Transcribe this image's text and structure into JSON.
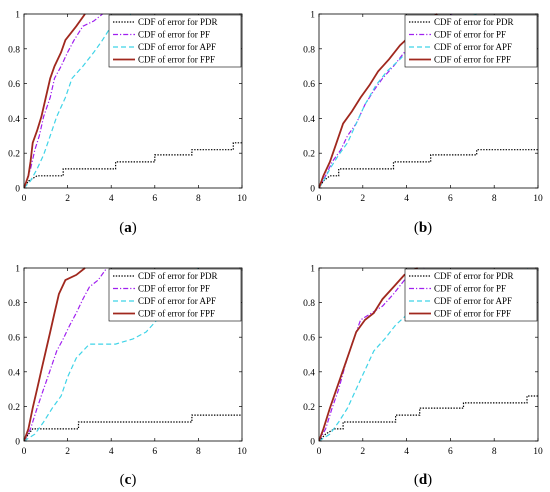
{
  "figure": {
    "styles": {
      "PDR": {
        "color": "#000000",
        "dash": "1.4,1.4",
        "width": 1.2
      },
      "PF": {
        "color": "#a020f0",
        "dash": "5,2,1.2,2",
        "width": 1.2
      },
      "APF": {
        "color": "#3fd4e8",
        "dash": "5,3",
        "width": 1.2
      },
      "FPF": {
        "color": "#a0281e",
        "dash": "",
        "width": 1.8
      }
    }
  },
  "chart_data": [
    {
      "type": "line",
      "label": "(a)",
      "xlim": [
        0,
        10
      ],
      "ylim": [
        0,
        1
      ],
      "xticks": [
        0,
        2,
        4,
        6,
        8,
        10
      ],
      "yticks": [
        0,
        0.2,
        0.4,
        0.6,
        0.8,
        1
      ],
      "legend_placement": "top-right",
      "series": [
        {
          "name": "CDF of error for PDR",
          "key": "PDR",
          "points": [
            [
              0,
              0
            ],
            [
              0.2,
              0.04
            ],
            [
              0.6,
              0.07
            ],
            [
              1.8,
              0.07
            ],
            [
              1.8,
              0.11
            ],
            [
              4.2,
              0.11
            ],
            [
              4.2,
              0.15
            ],
            [
              6.0,
              0.15
            ],
            [
              6.0,
              0.19
            ],
            [
              7.7,
              0.19
            ],
            [
              7.7,
              0.22
            ],
            [
              9.6,
              0.22
            ],
            [
              9.6,
              0.26
            ],
            [
              10,
              0.26
            ]
          ]
        },
        {
          "name": "CDF of error for PF",
          "key": "PF",
          "points": [
            [
              0,
              0
            ],
            [
              0.3,
              0.11
            ],
            [
              0.5,
              0.22
            ],
            [
              0.7,
              0.3
            ],
            [
              0.9,
              0.41
            ],
            [
              1.2,
              0.52
            ],
            [
              1.4,
              0.63
            ],
            [
              1.7,
              0.7
            ],
            [
              2.0,
              0.78
            ],
            [
              2.3,
              0.85
            ],
            [
              2.7,
              0.93
            ],
            [
              3.2,
              0.96
            ],
            [
              3.6,
              1.0
            ]
          ]
        },
        {
          "name": "CDF of error for APF",
          "key": "APF",
          "points": [
            [
              0,
              0
            ],
            [
              0.3,
              0.04
            ],
            [
              0.6,
              0.11
            ],
            [
              0.9,
              0.19
            ],
            [
              1.2,
              0.3
            ],
            [
              1.5,
              0.41
            ],
            [
              1.9,
              0.52
            ],
            [
              2.2,
              0.63
            ],
            [
              2.7,
              0.7
            ],
            [
              3.2,
              0.78
            ],
            [
              3.6,
              0.85
            ],
            [
              4.0,
              0.93
            ],
            [
              4.5,
              0.96
            ],
            [
              4.9,
              1.0
            ]
          ]
        },
        {
          "name": "CDF of error for FPF",
          "key": "FPF",
          "points": [
            [
              0,
              0
            ],
            [
              0.2,
              0.07
            ],
            [
              0.3,
              0.15
            ],
            [
              0.4,
              0.26
            ],
            [
              0.6,
              0.33
            ],
            [
              0.8,
              0.41
            ],
            [
              1.0,
              0.52
            ],
            [
              1.2,
              0.63
            ],
            [
              1.4,
              0.7
            ],
            [
              1.7,
              0.78
            ],
            [
              1.9,
              0.85
            ],
            [
              2.4,
              0.93
            ],
            [
              2.8,
              1.0
            ]
          ]
        }
      ]
    },
    {
      "type": "line",
      "label": "(b)",
      "xlim": [
        0,
        10
      ],
      "ylim": [
        0,
        1
      ],
      "xticks": [
        0,
        2,
        4,
        6,
        8,
        10
      ],
      "yticks": [
        0,
        0.2,
        0.4,
        0.6,
        0.8,
        1
      ],
      "legend_placement": "top-right",
      "series": [
        {
          "name": "CDF of error for PDR",
          "key": "PDR",
          "points": [
            [
              0,
              0
            ],
            [
              0.2,
              0.04
            ],
            [
              0.5,
              0.07
            ],
            [
              0.9,
              0.07
            ],
            [
              0.9,
              0.11
            ],
            [
              3.4,
              0.11
            ],
            [
              3.4,
              0.15
            ],
            [
              5.1,
              0.15
            ],
            [
              5.1,
              0.19
            ],
            [
              7.2,
              0.19
            ],
            [
              7.2,
              0.22
            ],
            [
              10,
              0.22
            ]
          ]
        },
        {
          "name": "CDF of error for PF",
          "key": "PF",
          "points": [
            [
              0,
              0
            ],
            [
              0.3,
              0.07
            ],
            [
              0.6,
              0.15
            ],
            [
              1.0,
              0.22
            ],
            [
              1.3,
              0.3
            ],
            [
              1.7,
              0.37
            ],
            [
              2.1,
              0.48
            ],
            [
              2.5,
              0.56
            ],
            [
              2.9,
              0.63
            ],
            [
              3.4,
              0.7
            ],
            [
              3.9,
              0.78
            ],
            [
              4.5,
              0.85
            ],
            [
              5.2,
              0.93
            ],
            [
              5.7,
              0.96
            ],
            [
              6.1,
              1.0
            ]
          ]
        },
        {
          "name": "CDF of error for APF",
          "key": "APF",
          "points": [
            [
              0,
              0
            ],
            [
              0.2,
              0.04
            ],
            [
              0.5,
              0.11
            ],
            [
              0.9,
              0.19
            ],
            [
              1.3,
              0.26
            ],
            [
              1.7,
              0.37
            ],
            [
              2.1,
              0.48
            ],
            [
              2.6,
              0.59
            ],
            [
              3.1,
              0.67
            ],
            [
              3.7,
              0.74
            ],
            [
              4.3,
              0.82
            ],
            [
              5.0,
              0.89
            ],
            [
              5.8,
              0.93
            ],
            [
              6.5,
              0.96
            ],
            [
              7.2,
              1.0
            ]
          ]
        },
        {
          "name": "CDF of error for FPF",
          "key": "FPF",
          "points": [
            [
              0,
              0
            ],
            [
              0.2,
              0.07
            ],
            [
              0.5,
              0.15
            ],
            [
              0.8,
              0.26
            ],
            [
              1.1,
              0.37
            ],
            [
              1.5,
              0.44
            ],
            [
              1.9,
              0.52
            ],
            [
              2.3,
              0.59
            ],
            [
              2.7,
              0.67
            ],
            [
              3.2,
              0.74
            ],
            [
              3.7,
              0.82
            ],
            [
              4.3,
              0.89
            ],
            [
              4.9,
              0.96
            ],
            [
              5.4,
              1.0
            ]
          ]
        }
      ]
    },
    {
      "type": "line",
      "label": "(c)",
      "xlim": [
        0,
        10
      ],
      "ylim": [
        0,
        1
      ],
      "xticks": [
        0,
        2,
        4,
        6,
        8,
        10
      ],
      "yticks": [
        0,
        0.2,
        0.4,
        0.6,
        0.8,
        1
      ],
      "legend_placement": "top-right",
      "series": [
        {
          "name": "CDF of error for PDR",
          "key": "PDR",
          "points": [
            [
              0,
              0
            ],
            [
              0.2,
              0.04
            ],
            [
              0.4,
              0.07
            ],
            [
              2.5,
              0.07
            ],
            [
              2.5,
              0.11
            ],
            [
              7.7,
              0.11
            ],
            [
              7.7,
              0.15
            ],
            [
              10,
              0.15
            ]
          ]
        },
        {
          "name": "CDF of error for PF",
          "key": "PF",
          "points": [
            [
              0,
              0
            ],
            [
              0.3,
              0.07
            ],
            [
              0.6,
              0.19
            ],
            [
              0.9,
              0.3
            ],
            [
              1.2,
              0.41
            ],
            [
              1.5,
              0.52
            ],
            [
              1.8,
              0.59
            ],
            [
              2.1,
              0.67
            ],
            [
              2.4,
              0.74
            ],
            [
              2.7,
              0.82
            ],
            [
              3.0,
              0.89
            ],
            [
              3.4,
              0.93
            ],
            [
              3.8,
              1.0
            ]
          ]
        },
        {
          "name": "CDF of error for APF",
          "key": "APF",
          "points": [
            [
              0,
              0
            ],
            [
              0.5,
              0.04
            ],
            [
              0.9,
              0.11
            ],
            [
              1.3,
              0.19
            ],
            [
              1.7,
              0.26
            ],
            [
              2.0,
              0.37
            ],
            [
              2.4,
              0.48
            ],
            [
              3.0,
              0.56
            ],
            [
              4.2,
              0.56
            ],
            [
              5.0,
              0.59
            ],
            [
              5.6,
              0.63
            ],
            [
              6.1,
              0.7
            ],
            [
              6.5,
              0.78
            ],
            [
              7.0,
              0.85
            ],
            [
              7.5,
              0.93
            ],
            [
              8.0,
              1.0
            ]
          ]
        },
        {
          "name": "CDF of error for FPF",
          "key": "FPF",
          "points": [
            [
              0,
              0
            ],
            [
              0.2,
              0.07
            ],
            [
              0.4,
              0.19
            ],
            [
              0.6,
              0.3
            ],
            [
              0.8,
              0.41
            ],
            [
              1.0,
              0.52
            ],
            [
              1.2,
              0.63
            ],
            [
              1.4,
              0.74
            ],
            [
              1.6,
              0.85
            ],
            [
              1.9,
              0.93
            ],
            [
              2.4,
              0.96
            ],
            [
              2.8,
              1.0
            ]
          ]
        }
      ]
    },
    {
      "type": "line",
      "label": "(d)",
      "xlim": [
        0,
        10
      ],
      "ylim": [
        0,
        1
      ],
      "xticks": [
        0,
        2,
        4,
        6,
        8,
        10
      ],
      "yticks": [
        0,
        0.2,
        0.4,
        0.6,
        0.8,
        1
      ],
      "legend_placement": "top-right",
      "series": [
        {
          "name": "CDF of error for PDR",
          "key": "PDR",
          "points": [
            [
              0,
              0
            ],
            [
              0.3,
              0.04
            ],
            [
              0.7,
              0.07
            ],
            [
              1.1,
              0.07
            ],
            [
              1.1,
              0.11
            ],
            [
              3.5,
              0.11
            ],
            [
              3.5,
              0.15
            ],
            [
              4.6,
              0.15
            ],
            [
              4.6,
              0.19
            ],
            [
              6.6,
              0.19
            ],
            [
              6.6,
              0.22
            ],
            [
              9.5,
              0.22
            ],
            [
              9.5,
              0.26
            ],
            [
              10,
              0.26
            ]
          ]
        },
        {
          "name": "CDF of error for PF",
          "key": "PF",
          "points": [
            [
              0,
              0
            ],
            [
              0.3,
              0.07
            ],
            [
              0.6,
              0.19
            ],
            [
              0.9,
              0.3
            ],
            [
              1.2,
              0.44
            ],
            [
              1.5,
              0.56
            ],
            [
              1.9,
              0.7
            ],
            [
              2.4,
              0.74
            ],
            [
              2.9,
              0.78
            ],
            [
              3.4,
              0.85
            ],
            [
              3.9,
              0.93
            ],
            [
              4.4,
              0.96
            ],
            [
              4.8,
              1.0
            ]
          ]
        },
        {
          "name": "CDF of error for APF",
          "key": "APF",
          "points": [
            [
              0,
              0
            ],
            [
              0.5,
              0.04
            ],
            [
              0.9,
              0.11
            ],
            [
              1.3,
              0.19
            ],
            [
              1.7,
              0.3
            ],
            [
              2.1,
              0.41
            ],
            [
              2.5,
              0.52
            ],
            [
              3.0,
              0.59
            ],
            [
              3.5,
              0.67
            ],
            [
              4.1,
              0.74
            ],
            [
              4.7,
              0.82
            ],
            [
              5.3,
              0.89
            ],
            [
              6.0,
              0.93
            ],
            [
              7.5,
              0.96
            ],
            [
              9.2,
              0.96
            ],
            [
              9.6,
              1.0
            ]
          ]
        },
        {
          "name": "CDF of error for FPF",
          "key": "FPF",
          "points": [
            [
              0,
              0
            ],
            [
              0.2,
              0.07
            ],
            [
              0.5,
              0.19
            ],
            [
              0.8,
              0.3
            ],
            [
              1.1,
              0.41
            ],
            [
              1.4,
              0.52
            ],
            [
              1.7,
              0.63
            ],
            [
              2.1,
              0.7
            ],
            [
              2.5,
              0.74
            ],
            [
              2.9,
              0.82
            ],
            [
              3.4,
              0.89
            ],
            [
              3.9,
              0.96
            ],
            [
              4.5,
              1.0
            ]
          ]
        }
      ]
    }
  ]
}
